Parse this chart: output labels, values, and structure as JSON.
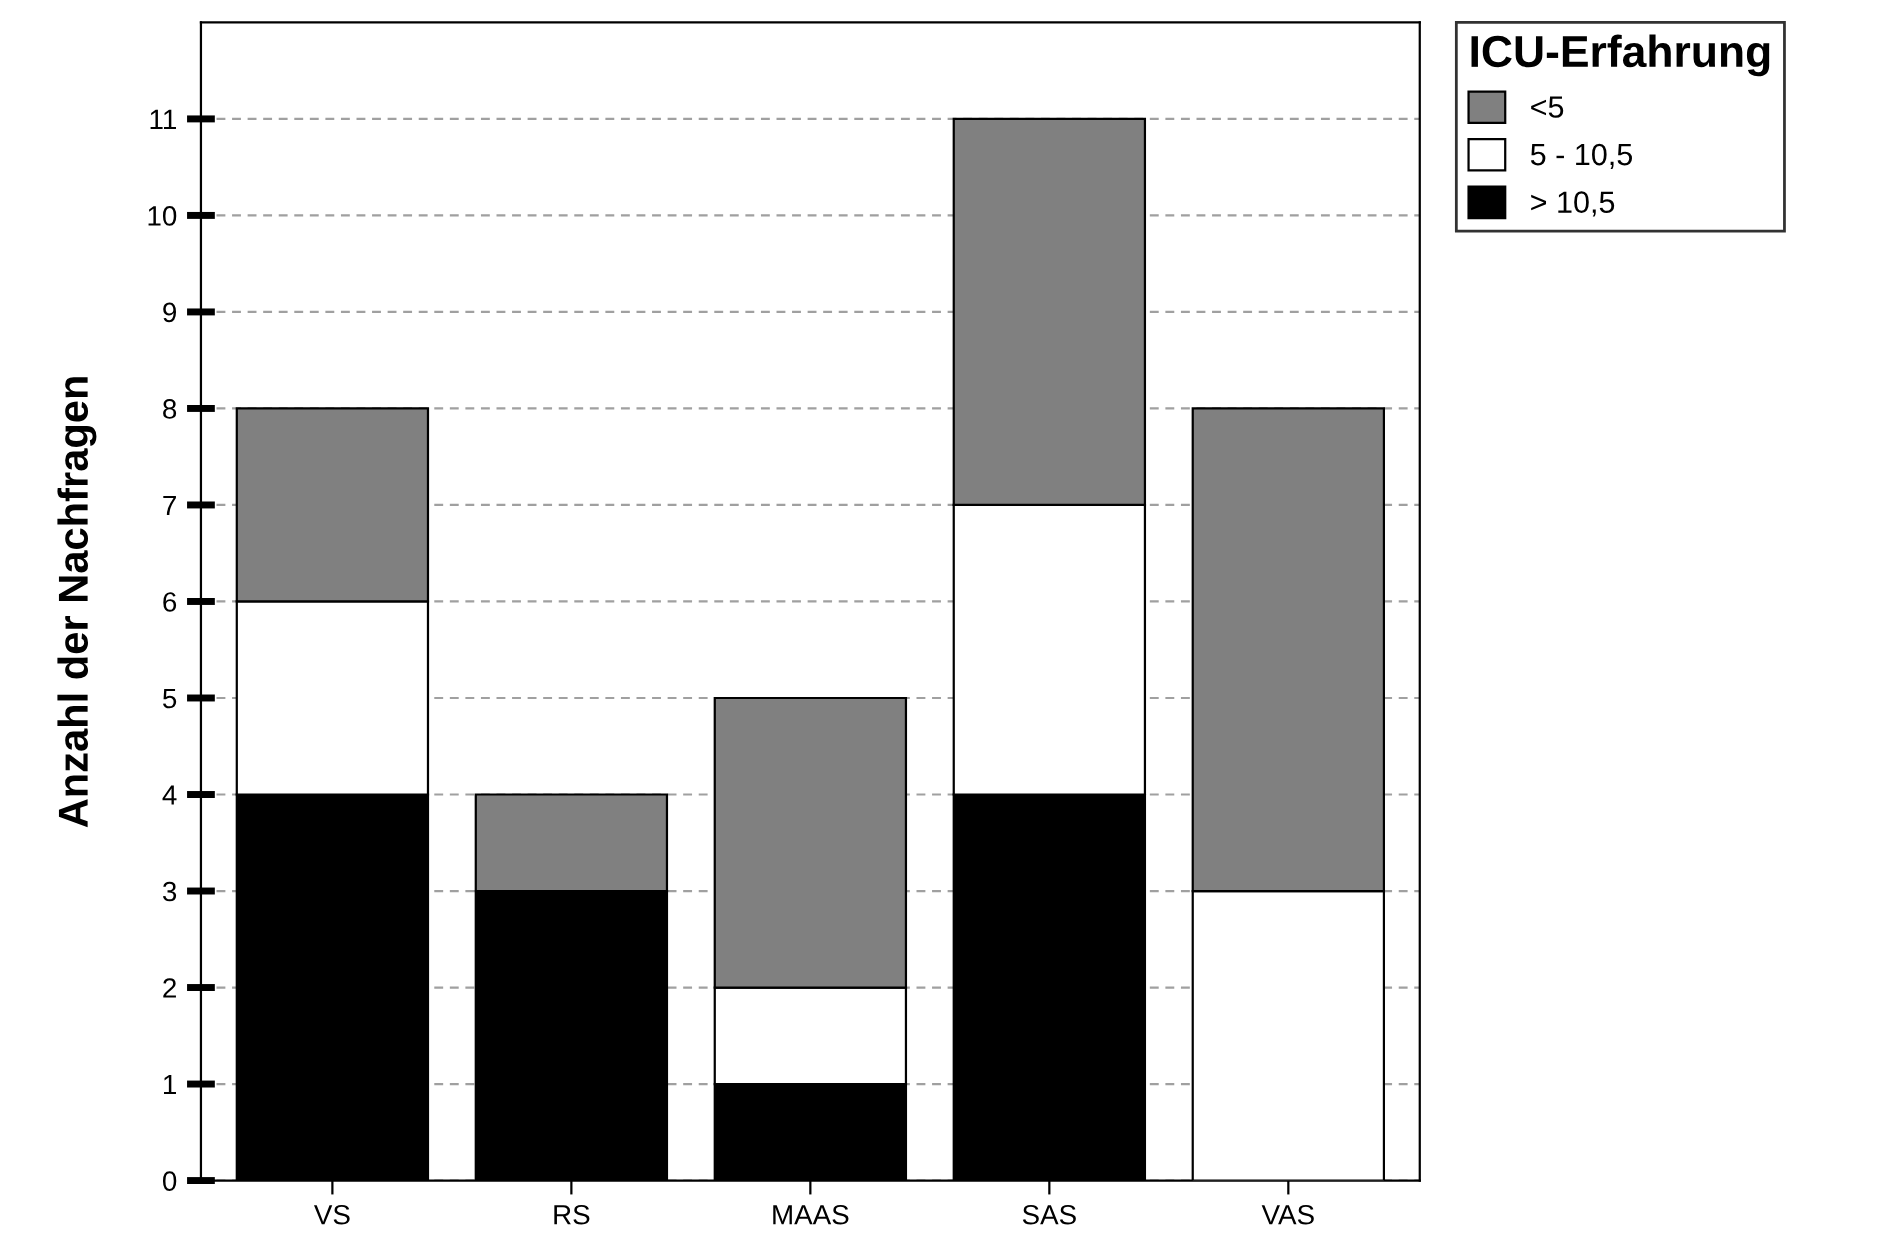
{
  "chart_data": {
    "type": "bar",
    "stacked": true,
    "ylabel": "Anzahl der Nachfragen",
    "legend_title": "ICU-Erfahrung",
    "categories": [
      "VS",
      "RS",
      "MAAS",
      "SAS",
      "VAS"
    ],
    "series": [
      {
        "name": "> 10,5",
        "color": "#000000",
        "values": [
          4,
          3,
          1,
          4,
          0
        ]
      },
      {
        "name": "5 - 10,5",
        "color": "#ffffff",
        "values": [
          2,
          0,
          1,
          3,
          3
        ]
      },
      {
        "name": "<5",
        "color": "#808080",
        "values": [
          2,
          1,
          3,
          4,
          5
        ]
      }
    ],
    "ylim": [
      0,
      12
    ],
    "yticks": [
      0,
      1,
      2,
      3,
      4,
      5,
      6,
      7,
      8,
      9,
      10,
      11
    ],
    "grid": "y",
    "legend": "top right"
  }
}
